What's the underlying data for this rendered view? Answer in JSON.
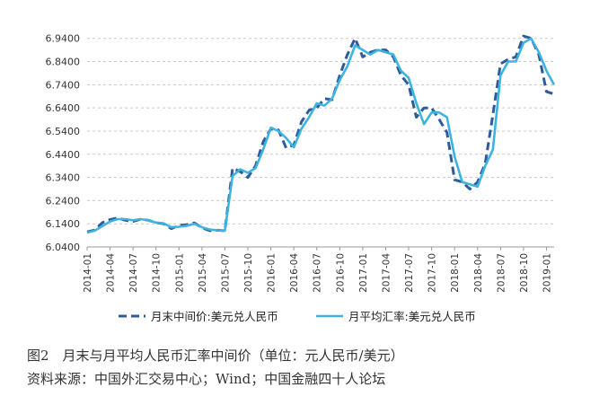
{
  "caption": {
    "figure": "图2　月末与月平均人民币汇率中间价（单位：元人民币/美元）",
    "source": "资料来源：中国外汇交易中心；Wind；中国金融四十人论坛"
  },
  "chart_data": {
    "type": "line",
    "title": "",
    "xlabel": "",
    "ylabel": "",
    "ylim": [
      6.04,
      6.97
    ],
    "yticks": [
      "6.0400",
      "6.1400",
      "6.2400",
      "6.3400",
      "6.4400",
      "6.5400",
      "6.6400",
      "6.7400",
      "6.8400",
      "6.9400"
    ],
    "grid": "horizontal dashed",
    "legend": "bottom",
    "x": [
      "2014-01",
      "2014-02",
      "2014-03",
      "2014-04",
      "2014-05",
      "2014-06",
      "2014-07",
      "2014-08",
      "2014-09",
      "2014-10",
      "2014-11",
      "2014-12",
      "2015-01",
      "2015-02",
      "2015-03",
      "2015-04",
      "2015-05",
      "2015-06",
      "2015-07",
      "2015-08",
      "2015-09",
      "2015-10",
      "2015-11",
      "2015-12",
      "2016-01",
      "2016-02",
      "2016-03",
      "2016-04",
      "2016-05",
      "2016-06",
      "2016-07",
      "2016-08",
      "2016-09",
      "2016-10",
      "2016-11",
      "2016-12",
      "2017-01",
      "2017-02",
      "2017-03",
      "2017-04",
      "2017-05",
      "2017-06",
      "2017-07",
      "2017-08",
      "2017-09",
      "2017-10",
      "2017-11",
      "2017-12",
      "2018-01",
      "2018-02",
      "2018-03",
      "2018-04",
      "2018-05",
      "2018-06",
      "2018-07",
      "2018-08",
      "2018-09",
      "2018-10",
      "2018-11",
      "2018-12",
      "2019-01",
      "2019-02"
    ],
    "xticks": [
      "2014-01",
      "2014-04",
      "2014-07",
      "2014-10",
      "2015-01",
      "2015-04",
      "2015-07",
      "2015-10",
      "2016-01",
      "2016-04",
      "2016-07",
      "2016-10",
      "2017-01",
      "2017-04",
      "2017-07",
      "2017-10",
      "2018-01",
      "2018-04",
      "2018-07",
      "2018-10",
      "2019-01"
    ],
    "series": [
      {
        "name": "月末中间价:美元兑人民币",
        "color": "#2e5c9a",
        "style": "dashed",
        "values": [
          6.105,
          6.113,
          6.145,
          6.158,
          6.165,
          6.155,
          6.15,
          6.16,
          6.155,
          6.145,
          6.14,
          6.119,
          6.133,
          6.136,
          6.144,
          6.123,
          6.11,
          6.112,
          6.11,
          6.38,
          6.365,
          6.34,
          6.39,
          6.494,
          6.55,
          6.545,
          6.467,
          6.48,
          6.58,
          6.63,
          6.64,
          6.68,
          6.675,
          6.78,
          6.87,
          6.94,
          6.86,
          6.88,
          6.89,
          6.89,
          6.86,
          6.78,
          6.74,
          6.6,
          6.64,
          6.64,
          6.59,
          6.534,
          6.33,
          6.32,
          6.29,
          6.32,
          6.4,
          6.61,
          6.83,
          6.85,
          6.86,
          6.95,
          6.94,
          6.87,
          6.71,
          6.7
        ]
      },
      {
        "name": "月平均汇率:美元兑人民币",
        "color": "#3db4e0",
        "style": "solid",
        "values": [
          6.102,
          6.11,
          6.13,
          6.15,
          6.16,
          6.16,
          6.155,
          6.16,
          6.155,
          6.145,
          6.142,
          6.125,
          6.127,
          6.131,
          6.14,
          6.125,
          6.115,
          6.112,
          6.11,
          6.346,
          6.375,
          6.36,
          6.38,
          6.46,
          6.555,
          6.54,
          6.51,
          6.47,
          6.55,
          6.6,
          6.66,
          6.65,
          6.68,
          6.76,
          6.82,
          6.91,
          6.89,
          6.87,
          6.89,
          6.88,
          6.87,
          6.8,
          6.77,
          6.66,
          6.57,
          6.62,
          6.62,
          6.6,
          6.43,
          6.32,
          6.31,
          6.3,
          6.39,
          6.46,
          6.78,
          6.84,
          6.84,
          6.92,
          6.94,
          6.88,
          6.8,
          6.74
        ]
      }
    ]
  }
}
